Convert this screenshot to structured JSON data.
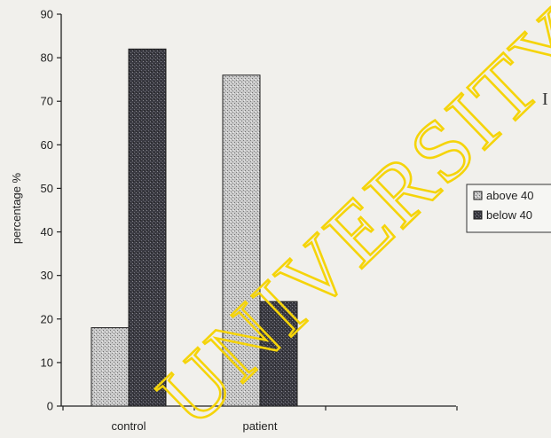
{
  "chart_data": {
    "type": "bar",
    "categories": [
      "control",
      "patient"
    ],
    "series": [
      {
        "name": "above 40",
        "values": [
          18,
          76
        ],
        "color": "#b9b9b9",
        "pattern": "stipple"
      },
      {
        "name": "below 40",
        "values": [
          82,
          24
        ],
        "color": "#3c3c44",
        "pattern": "stipple"
      }
    ],
    "ylabel": "percentage %",
    "xlabel": "",
    "ylim": [
      0,
      90
    ],
    "yticks": [
      0,
      10,
      20,
      30,
      40,
      50,
      60,
      70,
      80,
      90
    ],
    "grid": false,
    "legend_position": "right"
  },
  "watermark": {
    "text": "UNIVERSITY OF",
    "color": "#f5d40a"
  },
  "stray_glyph": "I"
}
